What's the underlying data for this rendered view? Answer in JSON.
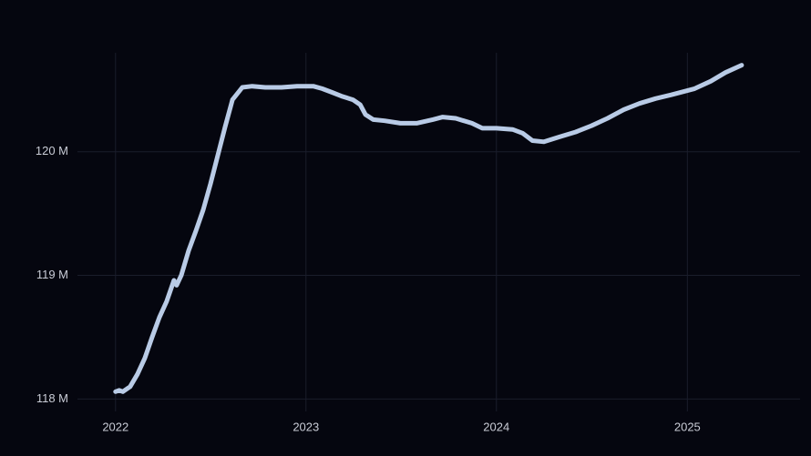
{
  "colors": {
    "background": "#05060f",
    "grid": "#1a1d2b",
    "line": "#b9cbe6",
    "tick_text": "#c9ccd6"
  },
  "chart_data": {
    "type": "line",
    "title": "",
    "xlabel": "",
    "ylabel": "",
    "grid": true,
    "legend": "none",
    "x_ticks": [
      {
        "label": "2022",
        "value": "2022-01-01"
      },
      {
        "label": "2023",
        "value": "2023-01-01"
      },
      {
        "label": "2024",
        "value": "2024-01-01"
      },
      {
        "label": "2025",
        "value": "2025-01-01"
      }
    ],
    "y_ticks": [
      {
        "label": "118 M",
        "value": 118000000
      },
      {
        "label": "119 M",
        "value": 119000000
      },
      {
        "label": "120 M",
        "value": 120000000
      }
    ],
    "xlim": [
      "2021-10-20",
      "2025-08-05"
    ],
    "ylim": [
      117900000,
      120800000
    ],
    "series": [
      {
        "points": [
          [
            "2022-01-01",
            118060000
          ],
          [
            "2022-01-08",
            118070000
          ],
          [
            "2022-01-15",
            118060000
          ],
          [
            "2022-01-29",
            118100000
          ],
          [
            "2022-02-12",
            118200000
          ],
          [
            "2022-02-26",
            118330000
          ],
          [
            "2022-03-12",
            118500000
          ],
          [
            "2022-03-26",
            118660000
          ],
          [
            "2022-04-09",
            118790000
          ],
          [
            "2022-04-23",
            118960000
          ],
          [
            "2022-04-28",
            118920000
          ],
          [
            "2022-05-07",
            119000000
          ],
          [
            "2022-05-21",
            119200000
          ],
          [
            "2022-06-04",
            119360000
          ],
          [
            "2022-06-18",
            119530000
          ],
          [
            "2022-07-02",
            119740000
          ],
          [
            "2022-07-16",
            119970000
          ],
          [
            "2022-07-30",
            120200000
          ],
          [
            "2022-08-13",
            120420000
          ],
          [
            "2022-09-01",
            120520000
          ],
          [
            "2022-09-20",
            120530000
          ],
          [
            "2022-10-15",
            120520000
          ],
          [
            "2022-11-15",
            120520000
          ],
          [
            "2022-12-15",
            120530000
          ],
          [
            "2023-01-15",
            120530000
          ],
          [
            "2023-02-01",
            120510000
          ],
          [
            "2023-02-20",
            120480000
          ],
          [
            "2023-03-10",
            120450000
          ],
          [
            "2023-04-01",
            120420000
          ],
          [
            "2023-04-15",
            120380000
          ],
          [
            "2023-04-25",
            120300000
          ],
          [
            "2023-05-10",
            120260000
          ],
          [
            "2023-06-01",
            120250000
          ],
          [
            "2023-07-01",
            120230000
          ],
          [
            "2023-08-01",
            120230000
          ],
          [
            "2023-09-01",
            120260000
          ],
          [
            "2023-09-20",
            120280000
          ],
          [
            "2023-10-15",
            120270000
          ],
          [
            "2023-11-15",
            120230000
          ],
          [
            "2023-12-05",
            120190000
          ],
          [
            "2024-01-01",
            120190000
          ],
          [
            "2024-02-01",
            120180000
          ],
          [
            "2024-02-20",
            120150000
          ],
          [
            "2024-03-10",
            120090000
          ],
          [
            "2024-04-01",
            120080000
          ],
          [
            "2024-05-01",
            120120000
          ],
          [
            "2024-06-01",
            120160000
          ],
          [
            "2024-07-01",
            120210000
          ],
          [
            "2024-08-01",
            120270000
          ],
          [
            "2024-09-01",
            120340000
          ],
          [
            "2024-10-01",
            120390000
          ],
          [
            "2024-11-01",
            120430000
          ],
          [
            "2024-12-01",
            120460000
          ],
          [
            "2025-01-15",
            120510000
          ],
          [
            "2025-02-15",
            120570000
          ],
          [
            "2025-03-15",
            120640000
          ],
          [
            "2025-04-15",
            120700000
          ]
        ]
      }
    ]
  }
}
